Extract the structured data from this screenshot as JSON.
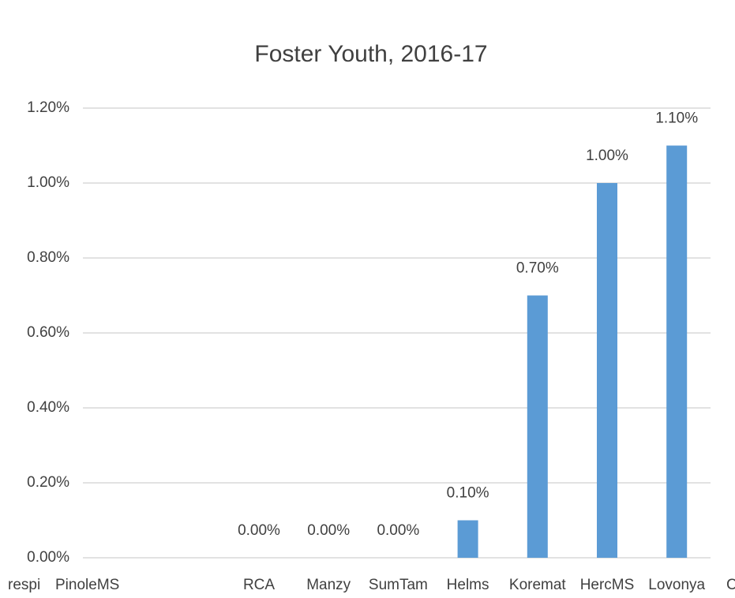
{
  "chart_data": {
    "type": "bar",
    "title": "Foster Youth, 2016-17",
    "categories": [
      "RCA",
      "Manzy",
      "SumTam",
      "Helms",
      "Koremat",
      "HercMS",
      "Lovonya"
    ],
    "values": [
      0,
      0,
      0,
      0.1,
      0.7,
      1.0,
      1.1
    ],
    "value_labels": [
      "0.00%",
      "0.00%",
      "0.00%",
      "0.10%",
      "0.70%",
      "1.00%",
      "1.10%"
    ],
    "color": "#5b9bd5",
    "ylim": [
      0,
      1.2
    ],
    "yticks": [
      {
        "value": 0,
        "label": "0.00%"
      },
      {
        "value": 0.2,
        "label": "0.20%"
      },
      {
        "value": 0.4,
        "label": "0.40%"
      },
      {
        "value": 0.6,
        "label": "0.60%"
      },
      {
        "value": 0.8,
        "label": "0.80%"
      },
      {
        "value": 1.0,
        "label": "1.00%"
      },
      {
        "value": 1.2,
        "label": "1.20%"
      }
    ],
    "grid": true,
    "fragment_labels": [
      "respi",
      "PinoleMS",
      "C"
    ]
  }
}
